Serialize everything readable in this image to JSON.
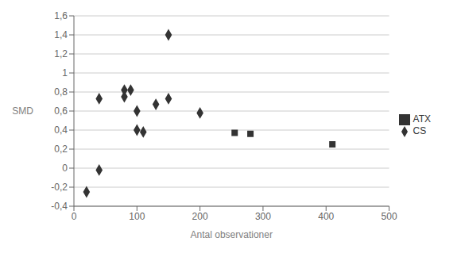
{
  "chart_data": {
    "type": "scatter",
    "x_label": "Antal observationer",
    "y_label": "SMD",
    "series": [
      {
        "name": "CS",
        "color": "#333333",
        "marker": "diamond",
        "x": [
          20,
          40,
          40,
          80,
          80,
          90,
          100,
          100,
          110,
          130,
          150,
          150,
          200
        ],
        "values": [
          -0.25,
          0.73,
          -0.02,
          0.75,
          0.82,
          0.82,
          0.6,
          0.4,
          0.38,
          0.67,
          1.4,
          0.73,
          0.58
        ]
      },
      {
        "name": "ATX",
        "color": "#333333",
        "marker": "square",
        "x": [
          255,
          280,
          410
        ],
        "values": [
          0.37,
          0.36,
          0.25
        ]
      }
    ],
    "xlim": [
      0,
      500
    ],
    "xticks": [
      0,
      100,
      200,
      300,
      400,
      500
    ],
    "ylim": [
      -0.4,
      1.6
    ],
    "yticks": [
      {
        "value": -0.4,
        "label": "-0,4"
      },
      {
        "value": -0.2,
        "label": "-0,2"
      },
      0,
      {
        "value": 0.2,
        "label": "0,2"
      },
      {
        "value": 0.4,
        "label": "0,4"
      },
      {
        "value": 0.6,
        "label": "0,6"
      },
      {
        "value": 0.8,
        "label": "0,8"
      },
      1,
      {
        "value": 1.2,
        "label": "1,2"
      },
      {
        "value": 1.4,
        "label": "1,4"
      },
      {
        "value": 1.6,
        "label": "1,6"
      }
    ],
    "grid": true,
    "legend": "right"
  }
}
